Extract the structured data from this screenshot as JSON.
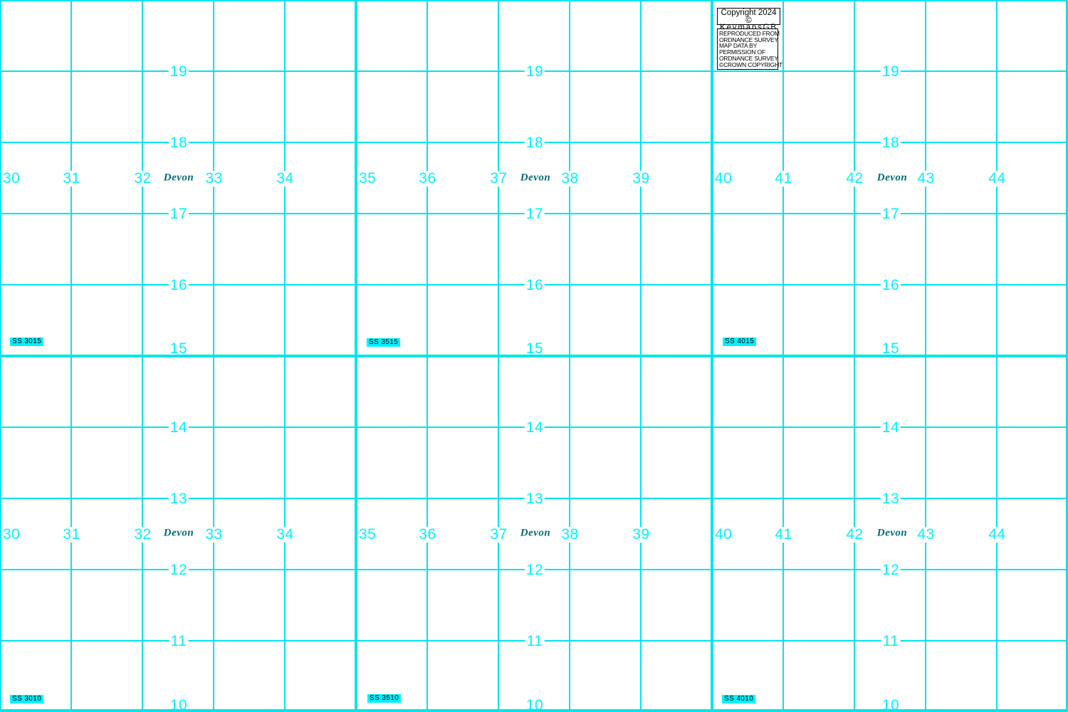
{
  "map": {
    "county_label": "Devon",
    "easting_labels": [
      "30",
      "31",
      "32",
      "33",
      "34",
      "35",
      "36",
      "37",
      "38",
      "39",
      "40",
      "41",
      "42",
      "43",
      "44"
    ],
    "northing_labels": [
      "19",
      "18",
      "17",
      "16",
      "15",
      "14",
      "13",
      "12",
      "11",
      "10"
    ],
    "grid_square_labels": [
      "SS 3015",
      "SS 3515",
      "SS 4015",
      "SS 3010",
      "SS 3510",
      "SS 4010"
    ],
    "colors": {
      "grid_line": "#00e5ec",
      "label_cyan": "#00f2ff",
      "county_teal": "#006b73",
      "square_label_bg": "#00f2ff",
      "background": "#ffffff"
    }
  },
  "copyright": {
    "line1": "Copyright 2024 ©",
    "line2": "KeymapsGB",
    "notice_lines": [
      "REPRODUCED FROM",
      "ORDNANCE SURVEY",
      "MAP DATA BY",
      "PERMISSION OF",
      "ORDNANCE SURVEY",
      "©CROWN COPYRIGHT"
    ]
  }
}
